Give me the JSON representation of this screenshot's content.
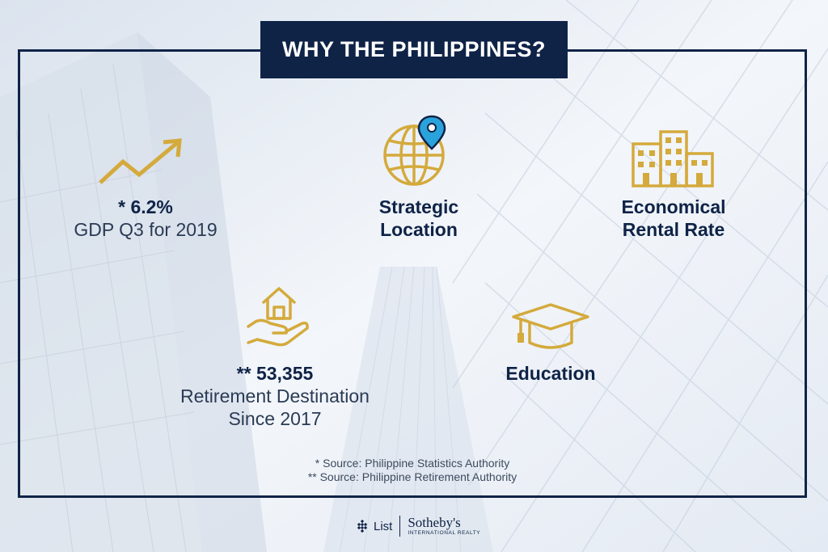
{
  "title": "WHY THE PHILIPPINES?",
  "colors": {
    "navy": "#0f2347",
    "gold": "#d4aa3c"
  },
  "items": [
    {
      "icon": "trend-up-arrow-icon",
      "value": "* 6.2%",
      "text": "GDP Q3 for 2019"
    },
    {
      "icon": "globe-pin-icon",
      "line1": "Strategic",
      "line2": "Location"
    },
    {
      "icon": "buildings-icon",
      "line1": "Economical",
      "line2": "Rental Rate"
    },
    {
      "icon": "hand-house-icon",
      "value": "** 53,355",
      "line1": "Retirement Destination",
      "line2": "Since 2017"
    },
    {
      "icon": "graduation-cap-icon",
      "line1": "Education"
    }
  ],
  "sources": [
    "* Source: Philippine Statistics Authority",
    "** Source: Philippine Retirement Authority"
  ],
  "logo": {
    "brand": "List",
    "partner": "Sotheby's",
    "partner_sub": "INTERNATIONAL REALTY"
  }
}
